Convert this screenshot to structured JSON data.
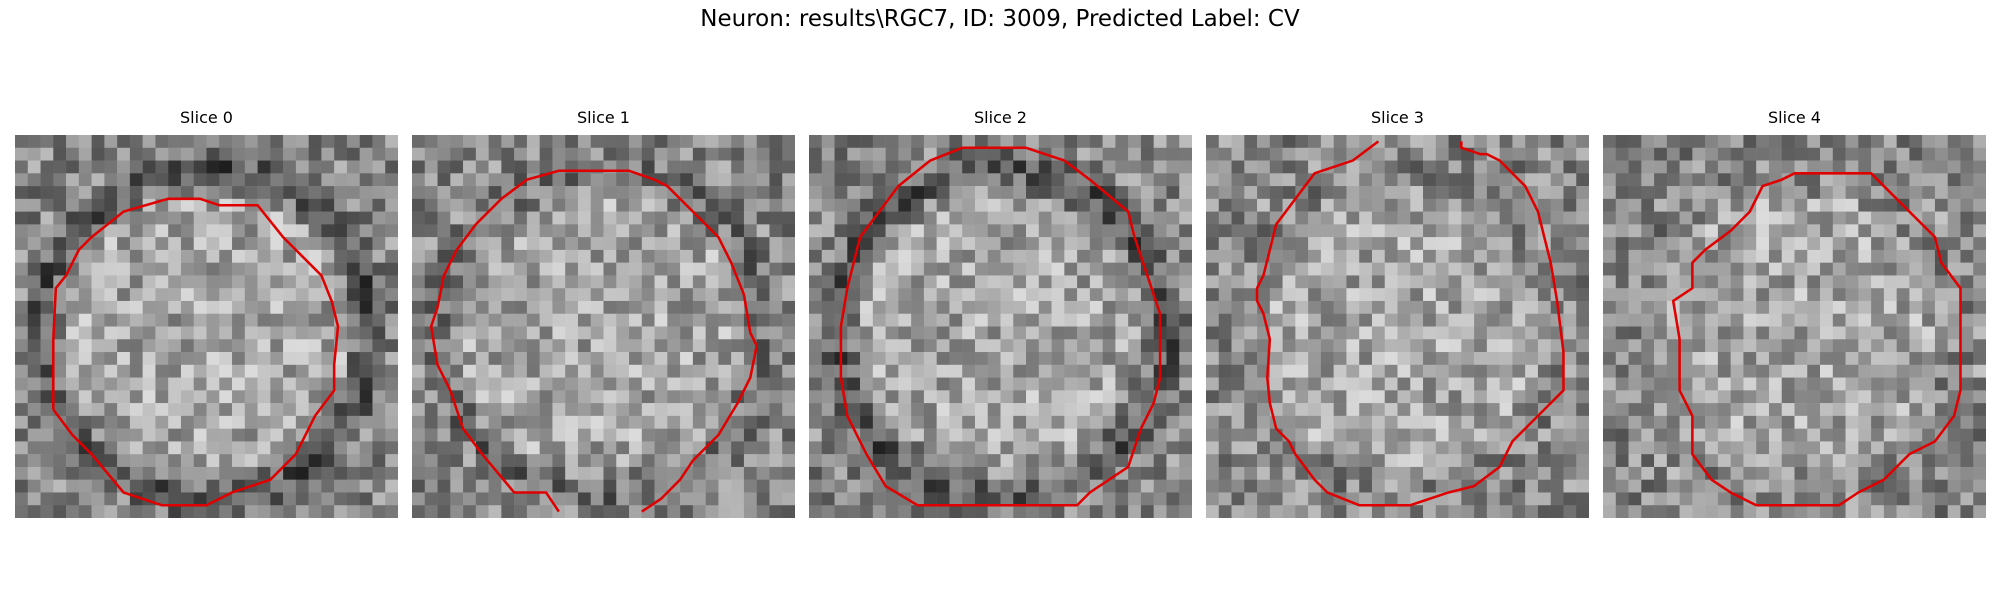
{
  "figure": {
    "title": "Neuron: results\\RGC7, ID: 3009, Predicted Label: CV"
  },
  "slices": [
    {
      "label": "Slice 0",
      "seed": 11,
      "contour_color": "#e00000",
      "ring": "dark"
    },
    {
      "label": "Slice 1",
      "seed": 23,
      "contour_color": "#e00000",
      "ring": "medium"
    },
    {
      "label": "Slice 2",
      "seed": 37,
      "contour_color": "#e00000",
      "ring": "dark"
    },
    {
      "label": "Slice 3",
      "seed": 41,
      "contour_color": "#e00000",
      "ring": "light"
    },
    {
      "label": "Slice 4",
      "seed": 53,
      "contour_color": "#e00000",
      "ring": "light"
    }
  ]
}
